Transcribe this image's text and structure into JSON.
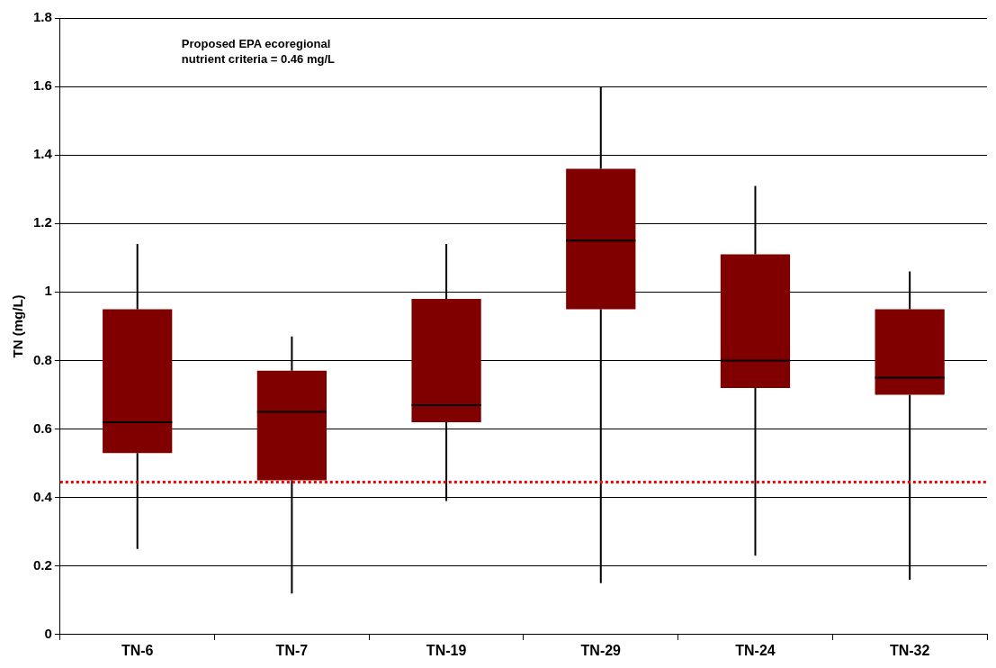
{
  "chart_data": {
    "type": "box",
    "ylabel": "TN (mg/L)",
    "categories": [
      "TN-6",
      "TN-7",
      "TN-19",
      "TN-29",
      "TN-24",
      "TN-32"
    ],
    "color": "#800000",
    "boxes": [
      {
        "low": 0.25,
        "q1": 0.53,
        "median": 0.62,
        "q3": 0.95,
        "high": 1.14
      },
      {
        "low": 0.12,
        "q1": 0.45,
        "median": 0.65,
        "q3": 0.77,
        "high": 0.87
      },
      {
        "low": 0.39,
        "q1": 0.62,
        "median": 0.67,
        "q3": 0.98,
        "high": 1.14
      },
      {
        "low": 0.15,
        "q1": 0.95,
        "median": 1.15,
        "q3": 1.36,
        "high": 1.6
      },
      {
        "low": 0.23,
        "q1": 0.72,
        "median": 0.8,
        "q3": 1.11,
        "high": 1.31
      },
      {
        "low": 0.16,
        "q1": 0.7,
        "median": 0.75,
        "q3": 0.95,
        "high": 1.06
      }
    ],
    "ylim": [
      0,
      1.8
    ],
    "yticks": [
      0,
      0.2,
      0.4,
      0.6,
      0.8,
      1,
      1.2,
      1.4,
      1.6,
      1.8
    ],
    "grid": "y",
    "ref_lines": [
      {
        "axis": "y",
        "value": 0.445,
        "color": "#ff0000",
        "line_style": "dotted"
      }
    ],
    "annotations": [
      "Proposed EPA ecoregional\nnutrient criteria = 0.46 mg/L"
    ]
  }
}
